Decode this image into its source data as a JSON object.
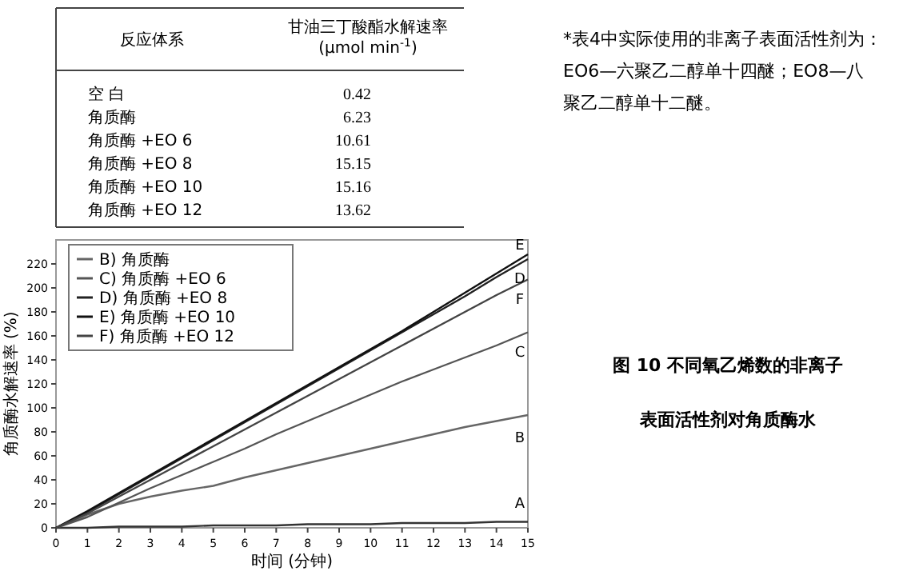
{
  "chart_data": [
    {
      "type": "other",
      "xlabel": "反应体系",
      "ylabel": "甘油三丁酸酯水解速率 (μmol min$^{-1}$)",
      "categories": [
        "空 白",
        "角质酶",
        "角质酶 +EO 6",
        "角质酶 +EO 8",
        "角质酶 +EO 10",
        "角质酶 +EO 12"
      ],
      "values": [
        0.42,
        6.23,
        10.61,
        15.15,
        15.16,
        13.62
      ],
      "data_labels": true
    },
    {
      "type": "line",
      "title": "图 10 不同氧乙烯数的非离子表面活性剂对角质酶水",
      "xlabel": "时间 (分钟)",
      "ylabel": "角质酶水解速率 (%)",
      "x": [
        0,
        1,
        2,
        3,
        4,
        5,
        6,
        7,
        8,
        9,
        10,
        11,
        12,
        13,
        14,
        15
      ],
      "xlim": [
        0,
        15
      ],
      "xticks": [
        0,
        1,
        2,
        3,
        4,
        5,
        6,
        7,
        8,
        9,
        10,
        11,
        12,
        13,
        14,
        15
      ],
      "ylim": [
        0,
        240
      ],
      "yticks": [
        0,
        20,
        40,
        60,
        80,
        100,
        120,
        140,
        160,
        180,
        200,
        220
      ],
      "grid": false,
      "legend": "top left",
      "marker": "none",
      "line_style": "solid",
      "series": [
        {
          "color": "#333333",
          "values": [
            0,
            0,
            1,
            1,
            1,
            2,
            2,
            2,
            3,
            3,
            3,
            4,
            4,
            4,
            5,
            5
          ]
        },
        {
          "name": "B) 角质酶",
          "color": "#666666",
          "values": [
            0,
            11,
            20,
            26,
            31,
            35,
            42,
            48,
            54,
            60,
            66,
            72,
            78,
            84,
            89,
            94
          ]
        },
        {
          "name": "C) 角质酶 +EO 6",
          "color": "#555555",
          "values": [
            0,
            9,
            21,
            33,
            44,
            55,
            66,
            78,
            89,
            100,
            111,
            122,
            132,
            142,
            152,
            163
          ]
        },
        {
          "name": "D) 角质酶 +EO 8",
          "color": "#222222",
          "values": [
            0,
            13,
            28,
            43,
            58,
            73,
            88,
            103,
            118,
            133,
            148,
            163,
            178,
            193,
            209,
            224
          ]
        },
        {
          "name": "E) 角质酶 +EO 10",
          "color": "#111111",
          "values": [
            0,
            14,
            29,
            44,
            59,
            74,
            89,
            104,
            119,
            134,
            149,
            164,
            180,
            196,
            212,
            228
          ]
        },
        {
          "name": "F) 角质酶 +EO 12",
          "color": "#444444",
          "values": [
            0,
            12,
            26,
            40,
            54,
            68,
            82,
            96,
            110,
            124,
            138,
            152,
            166,
            180,
            194,
            207
          ]
        }
      ],
      "annotations": [
        "A",
        "B",
        "C",
        "D",
        "E",
        "F",
        "*表4中实际使用的非离子表面活性剂为：EO6—六聚乙二醇单十四醚；EO8—八聚乙二醇单十二醚。"
      ]
    }
  ]
}
